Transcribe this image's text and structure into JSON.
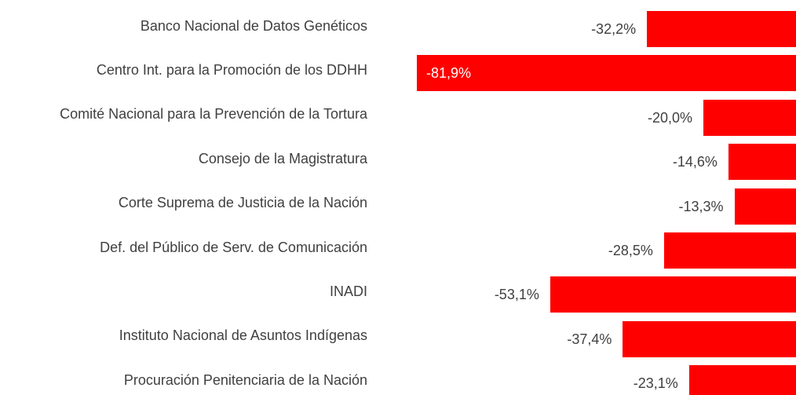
{
  "chart_data": {
    "type": "bar",
    "orientation": "horizontal",
    "color": "#ff0000",
    "categories": [
      "Banco Nacional de Datos Genéticos",
      "Centro Int. para la Promoción de los DDHH",
      "Comité Nacional para la Prevención de la Tortura",
      "Consejo de la Magistratura",
      "Corte Suprema de Justicia de la Nación",
      "Def. del Público de Serv. de Comunicación",
      "INADI",
      "Instituto Nacional de Asuntos Indígenas",
      "Procuración Penitenciaria de la Nación"
    ],
    "values": [
      -32.2,
      -81.9,
      -20.0,
      -14.6,
      -13.3,
      -28.5,
      -53.1,
      -37.4,
      -23.1
    ],
    "value_labels": [
      "-32,2%",
      "-81,9%",
      "-20,0%",
      "-14,6%",
      "-13,3%",
      "-28,5%",
      "-53,1%",
      "-37,4%",
      "-23,1%"
    ],
    "xlim": [
      -81.9,
      0
    ]
  }
}
